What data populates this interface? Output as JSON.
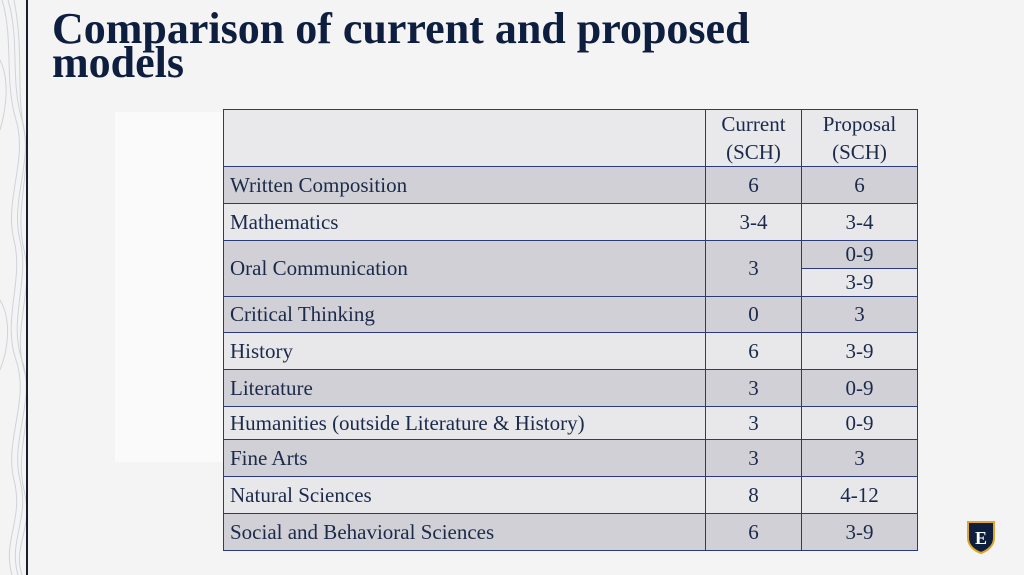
{
  "slide": {
    "title": "Comparison of current and proposed models"
  },
  "table": {
    "headers": [
      "",
      "Current (SCH)",
      "Proposal (SCH)"
    ],
    "rows": [
      {
        "subject": "Written Composition",
        "current": "6",
        "proposal": "6"
      },
      {
        "subject": "Mathematics",
        "current": "3-4",
        "proposal": "3-4"
      },
      {
        "subject": "Oral Communication",
        "current": "3",
        "proposal_a": "0-9",
        "proposal_b": "3-9"
      },
      {
        "subject": "Critical Thinking",
        "current": "0",
        "proposal": "3"
      },
      {
        "subject": "History",
        "current": "6",
        "proposal": "3-9"
      },
      {
        "subject": "Literature",
        "current": "3",
        "proposal": "0-9"
      },
      {
        "subject": "Humanities (outside Literature & History)",
        "current": "3",
        "proposal": "0-9"
      },
      {
        "subject": "Fine Arts",
        "current": "3",
        "proposal": "3"
      },
      {
        "subject": "Natural Sciences",
        "current": "8",
        "proposal": "4-12"
      },
      {
        "subject": "Social and Behavioral Sciences",
        "current": "6",
        "proposal": "3-9"
      }
    ]
  },
  "logo": {
    "icon": "shield-e-icon",
    "letter": "E",
    "colors": {
      "shield": "#0e1e3f",
      "accent": "#e1a624"
    }
  }
}
